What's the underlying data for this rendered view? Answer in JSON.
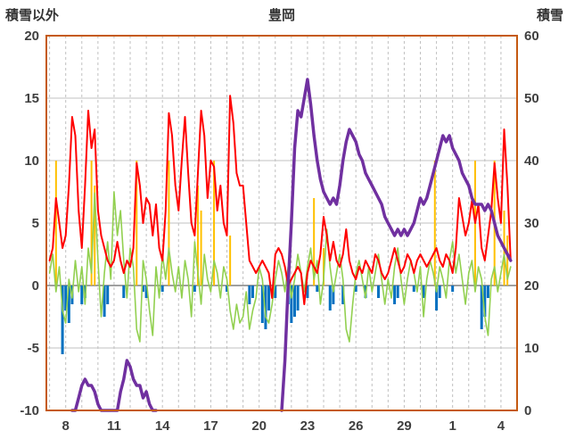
{
  "titles": {
    "left": "積雪以外",
    "center": "豊岡",
    "right": "積雪"
  },
  "chart_data": {
    "type": "line",
    "title": "豊岡",
    "left_axis": {
      "label": "積雪以外",
      "min": -10,
      "max": 20,
      "ticks": [
        20,
        15,
        10,
        5,
        0,
        -5,
        -10
      ]
    },
    "right_axis": {
      "label": "積雪",
      "min": 0,
      "max": 60,
      "ticks": [
        60,
        50,
        40,
        30,
        20,
        10,
        0
      ]
    },
    "x_axis": {
      "day_min": 6.8,
      "day_max": 36.0,
      "grid_interval": 1,
      "tick_days": [
        8,
        11,
        14,
        17,
        20,
        23,
        26,
        29,
        32,
        35
      ],
      "tick_labels": [
        "8",
        "11",
        "14",
        "17",
        "20",
        "23",
        "26",
        "29",
        "1",
        "4"
      ]
    },
    "grid_color": "#c0c0c0",
    "zero_line_color": "#808080",
    "frame_color": "#c55a11",
    "label_color": "#3f3f3f",
    "series": [
      {
        "name": "orange-spikes",
        "type": "bar",
        "axis": "left",
        "color": "#ffc000",
        "width": 2,
        "points": [
          [
            7.4,
            10
          ],
          [
            9.6,
            10
          ],
          [
            9.8,
            8
          ],
          [
            12.4,
            10
          ],
          [
            14.4,
            10
          ],
          [
            16.2,
            8
          ],
          [
            16.4,
            6
          ],
          [
            17.2,
            10
          ],
          [
            18.2,
            4
          ],
          [
            23.4,
            7
          ],
          [
            24.0,
            3
          ],
          [
            30.9,
            10
          ],
          [
            33.4,
            10
          ],
          [
            34.6,
            10
          ],
          [
            35.2,
            6
          ],
          [
            35.4,
            4
          ]
        ]
      },
      {
        "name": "blue-bars",
        "type": "bar",
        "axis": "left",
        "color": "#0070c0",
        "width": 3,
        "points": [
          [
            7.8,
            -5.5
          ],
          [
            8.0,
            -2
          ],
          [
            8.2,
            -3
          ],
          [
            8.4,
            -1.5
          ],
          [
            9.0,
            -1.5
          ],
          [
            9.2,
            -1
          ],
          [
            10.4,
            -2.5
          ],
          [
            10.6,
            -1.5
          ],
          [
            11.6,
            -1
          ],
          [
            12.8,
            -0.5
          ],
          [
            13.0,
            -1
          ],
          [
            14.0,
            -0.5
          ],
          [
            16.0,
            -0.5
          ],
          [
            18.0,
            -0.5
          ],
          [
            19.4,
            -1.5
          ],
          [
            19.6,
            -1
          ],
          [
            20.2,
            -3
          ],
          [
            20.4,
            -3.5
          ],
          [
            20.6,
            -2
          ],
          [
            21.0,
            -1
          ],
          [
            21.8,
            -1.5
          ],
          [
            22.0,
            -3
          ],
          [
            22.2,
            -2.5
          ],
          [
            22.4,
            -2
          ],
          [
            23.0,
            -1
          ],
          [
            23.6,
            -0.5
          ],
          [
            24.4,
            -2
          ],
          [
            24.6,
            -1.5
          ],
          [
            25.2,
            -1.5
          ],
          [
            26.0,
            -0.5
          ],
          [
            26.6,
            -1
          ],
          [
            27.4,
            -1
          ],
          [
            28.4,
            -1.5
          ],
          [
            28.6,
            -1
          ],
          [
            29.6,
            -0.5
          ],
          [
            30.2,
            -1
          ],
          [
            31.0,
            -2
          ],
          [
            31.2,
            -1
          ],
          [
            32.0,
            -0.5
          ],
          [
            33.8,
            -3.5
          ],
          [
            34.0,
            -2.5
          ],
          [
            34.2,
            -1
          ]
        ]
      },
      {
        "name": "green-line",
        "type": "line",
        "axis": "left",
        "color": "#92d050",
        "width": 1.6,
        "x_start": 7.0,
        "x_step": 0.2,
        "values": [
          1,
          2.5,
          -0.5,
          1.5,
          -2,
          -3,
          0.5,
          -1,
          2,
          -0.5,
          1.5,
          -1.5,
          3,
          1,
          7.4,
          2,
          -2.5,
          1,
          3.5,
          0.5,
          7.5,
          4,
          6,
          2,
          -1,
          3,
          1.5,
          -3.5,
          -4.5,
          2,
          0.5,
          -2,
          -4,
          1.5,
          -1,
          2.5,
          0.5,
          3,
          1,
          -0.5,
          1.5,
          -1,
          2,
          0.5,
          -2.5,
          3.5,
          1,
          -1.5,
          2.5,
          0.5,
          -0.5,
          2,
          1,
          -1,
          1.5,
          0.5,
          -2,
          -3.5,
          -1.5,
          -3,
          -2.5,
          -0.5,
          -3.5,
          -2,
          -1,
          1.5,
          0.5,
          -2.5,
          -3,
          -1.5,
          0.5,
          2,
          1,
          -0.5,
          1.5,
          -1,
          0.5,
          2.5,
          1,
          -0.5,
          1.5,
          3,
          0.5,
          2,
          -1.5,
          0.5,
          4.5,
          1.5,
          -0.5,
          1,
          2.5,
          0.5,
          -3.5,
          -4.5,
          -1.5,
          1,
          2,
          0.5,
          -1,
          1.5,
          -0.5,
          1,
          2.5,
          0.5,
          -1.5,
          0.5,
          -1,
          1.5,
          3,
          0.5,
          -1.5,
          0.5,
          2,
          1,
          -0.5,
          1.5,
          -2.5,
          0.5,
          2,
          1,
          -0.5,
          1.5,
          0.5,
          -1,
          2,
          3.5,
          1,
          2.5,
          0.5,
          -1.5,
          1,
          2,
          -0.5,
          1.5,
          0.5,
          -2.5,
          -4,
          0.5,
          1.5,
          -0.5,
          1,
          2.5,
          0.5,
          1.5
        ]
      },
      {
        "name": "red-line",
        "type": "line",
        "axis": "left",
        "color": "#ff0000",
        "width": 2,
        "x_start": 7.0,
        "x_step": 0.2,
        "values": [
          2,
          3,
          7,
          5,
          3,
          4,
          8,
          13.5,
          12,
          6,
          3,
          8,
          14,
          11,
          12.5,
          6,
          4,
          3,
          2,
          1.5,
          2,
          3.5,
          2,
          1,
          2,
          1.5,
          3,
          9.8,
          8,
          5,
          7,
          6.5,
          4,
          6.5,
          3,
          2,
          6,
          13.8,
          12,
          8,
          6,
          10,
          13.5,
          9,
          5,
          4,
          9,
          14,
          12,
          7,
          10,
          9.5,
          6,
          8,
          5,
          4,
          15.2,
          13,
          9,
          8,
          8,
          5,
          2,
          1.5,
          1,
          1.5,
          2,
          1.5,
          1,
          -1,
          2.5,
          3,
          2.5,
          1.5,
          0,
          0.5,
          1,
          1.5,
          1,
          -1.5,
          1,
          2,
          1.5,
          1,
          2.5,
          5.5,
          4,
          2,
          3.5,
          2,
          1.5,
          2.5,
          4.5,
          2,
          1,
          0.5,
          1.5,
          1,
          2,
          1.5,
          1,
          2.5,
          2,
          1,
          0.5,
          1,
          2,
          3,
          2,
          1,
          1.5,
          2.5,
          2,
          1,
          2,
          2.5,
          2,
          1.5,
          2,
          2.5,
          3,
          2,
          1.5,
          2.5,
          2,
          1,
          3,
          7,
          5.5,
          4,
          5,
          6.8,
          5,
          6.5,
          3,
          2,
          4,
          6,
          9.8,
          7,
          5,
          12.5,
          8,
          2
        ]
      },
      {
        "name": "snow-depth-line",
        "type": "line-segments",
        "axis": "right",
        "color": "#7030a0",
        "width": 3.5,
        "segments": [
          {
            "x_start": 8.4,
            "x_step": 0.2,
            "values": [
              0,
              0,
              2,
              4,
              5,
              4,
              4,
              3,
              1,
              0,
              0,
              0,
              0,
              0,
              0,
              3,
              5,
              8,
              7,
              5,
              4,
              4,
              2,
              3,
              1,
              0,
              0
            ]
          },
          {
            "x_start": 21.4,
            "x_step": 0.2,
            "values": [
              0,
              8,
              20,
              30,
              42,
              48,
              47,
              50,
              53,
              49,
              44,
              40,
              37,
              35,
              34,
              33,
              34,
              33,
              36,
              40,
              43,
              45,
              44,
              43,
              41,
              40,
              38,
              37,
              36,
              35,
              34,
              33,
              31,
              30,
              29,
              28,
              29,
              28,
              29,
              28,
              29,
              30,
              32,
              34,
              33,
              34,
              36,
              38,
              40,
              42,
              44,
              43,
              44,
              42,
              41,
              40,
              38,
              37,
              36,
              34,
              33,
              33,
              33,
              32,
              33,
              32,
              30,
              28,
              27,
              26,
              25,
              24
            ]
          }
        ]
      }
    ]
  }
}
